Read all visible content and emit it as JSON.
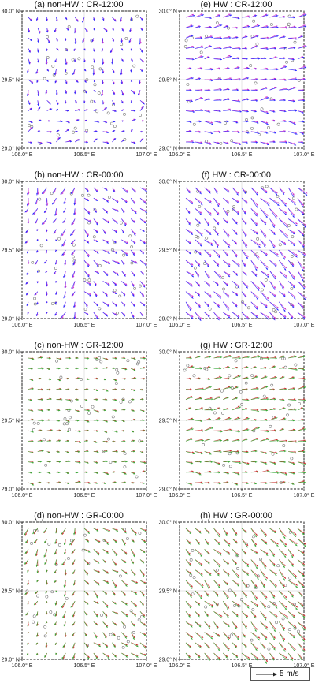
{
  "chart_data": [
    {
      "type": "vector",
      "title": "(a) non-HW : CR-12:00",
      "vector_colors": [
        "#2d2dff",
        "#cc33cc"
      ],
      "flow": "mixed-weak"
    },
    {
      "type": "vector",
      "title": "(e) HW : CR-12:00",
      "vector_colors": [
        "#2d2dff",
        "#cc33cc"
      ],
      "flow": "west-east"
    },
    {
      "type": "vector",
      "title": "(b) non-HW : CR-00:00",
      "vector_colors": [
        "#2d2dff",
        "#cc33cc"
      ],
      "flow": "southeast-divergent"
    },
    {
      "type": "vector",
      "title": "(f) HW : CR-00:00",
      "vector_colors": [
        "#2d2dff",
        "#cc33cc"
      ],
      "flow": "southeast-strong"
    },
    {
      "type": "vector",
      "title": "(c) non-HW : GR-12:00",
      "vector_colors": [
        "#3aa93a",
        "#cc3333"
      ],
      "flow": "east-weak"
    },
    {
      "type": "vector",
      "title": "(g) HW : GR-12:00",
      "vector_colors": [
        "#3aa93a",
        "#cc3333"
      ],
      "flow": "west-east"
    },
    {
      "type": "vector",
      "title": "(d) non-HW : GR-00:00",
      "vector_colors": [
        "#3aa93a",
        "#cc3333"
      ],
      "flow": "southeast-divergent"
    },
    {
      "type": "vector",
      "title": "(h) HW : GR-00:00",
      "vector_colors": [
        "#3aa93a",
        "#cc3333"
      ],
      "flow": "southeast-strong"
    }
  ],
  "axes": {
    "x_ticks": [
      "106.0° E",
      "106.5° E",
      "107.0° E"
    ],
    "y_ticks": [
      "30.0° N",
      "29.5° N",
      "29.0° N"
    ],
    "xlim": [
      106.0,
      107.0
    ],
    "ylim": [
      29.0,
      30.0
    ]
  },
  "legend": {
    "label": "5 m/s",
    "reference_speed": 5
  }
}
